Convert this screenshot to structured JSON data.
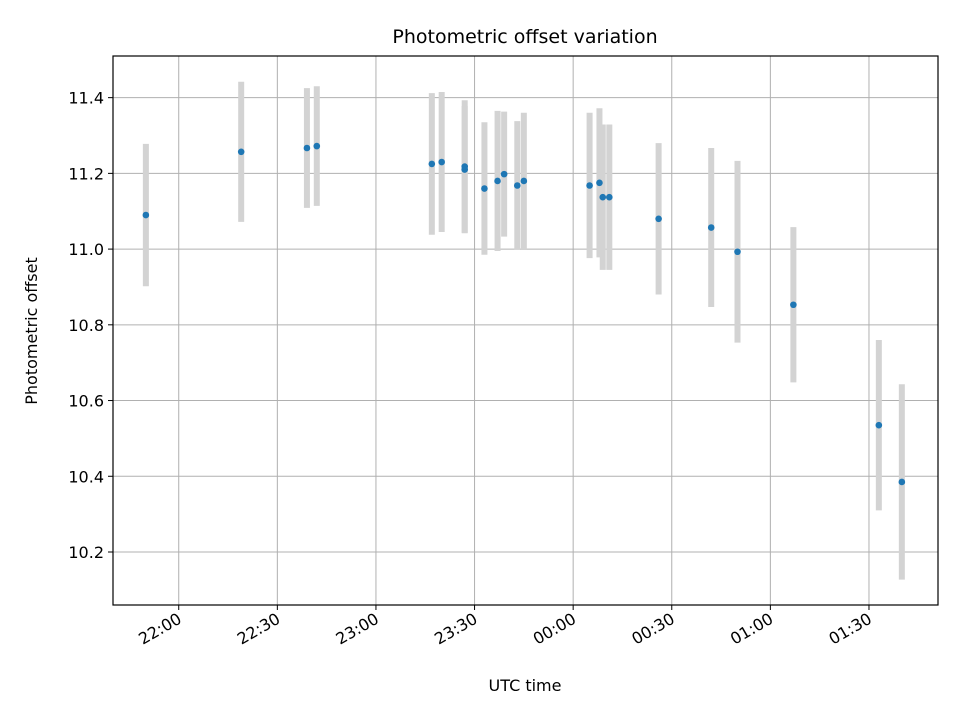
{
  "chart_data": {
    "type": "scatter",
    "title": "Photometric offset variation",
    "xlabel": "UTC time",
    "ylabel": "Photometric offset",
    "grid": true,
    "xlim": [
      "21:40",
      "01:51"
    ],
    "ylim": [
      10.06,
      11.51
    ],
    "x_ticks": [
      "22:00",
      "22:30",
      "23:00",
      "23:30",
      "00:00",
      "00:30",
      "01:00",
      "01:30"
    ],
    "y_ticks": [
      10.2,
      10.4,
      10.6,
      10.8,
      11.0,
      11.2,
      11.4
    ],
    "y_tick_labels": [
      "10.2",
      "10.4",
      "10.6",
      "10.8",
      "11.0",
      "11.2",
      "11.4"
    ],
    "marker_color": "#1f77b4",
    "errorbar_color": "#d3d3d3",
    "series": [
      {
        "x": [
          "21:50",
          "22:19",
          "22:39",
          "22:42",
          "23:17",
          "23:20",
          "23:27",
          "23:27",
          "23:33",
          "23:37",
          "23:39",
          "23:43",
          "23:45",
          "00:05",
          "00:08",
          "00:09",
          "00:11",
          "00:26",
          "00:42",
          "00:50",
          "01:07",
          "01:33",
          "01:40"
        ],
        "y": [
          11.09,
          11.257,
          11.267,
          11.272,
          11.225,
          11.23,
          11.21,
          11.218,
          11.16,
          11.18,
          11.198,
          11.168,
          11.18,
          11.168,
          11.175,
          11.137,
          11.137,
          11.08,
          11.057,
          10.993,
          10.853,
          10.535,
          10.385
        ],
        "yerr": [
          0.188,
          0.185,
          0.158,
          0.158,
          0.187,
          0.185,
          0.168,
          0.175,
          0.175,
          0.185,
          0.165,
          0.17,
          0.18,
          0.192,
          0.197,
          0.192,
          0.192,
          0.2,
          0.21,
          0.24,
          0.205,
          0.225,
          0.258
        ]
      }
    ]
  }
}
